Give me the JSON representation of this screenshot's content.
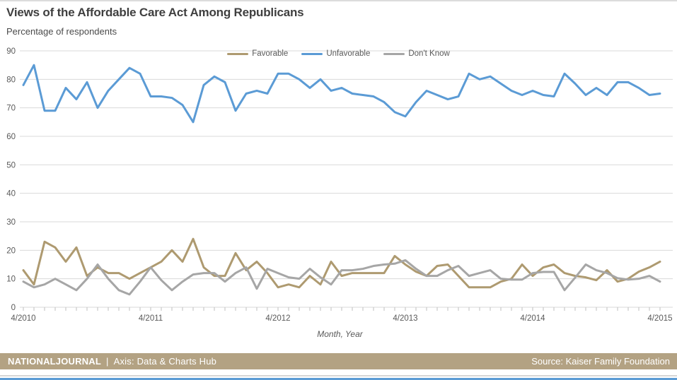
{
  "title": "Views of the Affordable Care Act Among Republicans",
  "subtitle": "Percentage of respondents",
  "footer": {
    "brand": "NATIONALJOURNAL",
    "divider": "|",
    "tagline": "Axis: Data & Charts Hub",
    "source": "Source: Kaiser Family Foundation",
    "bar_color": "#b3a283",
    "bottom_stripe_color": "#5b9bd5"
  },
  "chart_data": {
    "type": "line",
    "title": "Views of the Affordable Care Act Among Republicans",
    "subtitle": "Percentage of respondents",
    "xlabel": "Month, Year",
    "ylabel": "Percentage of respondents",
    "ylim": [
      0,
      90
    ],
    "y_ticks": [
      0,
      10,
      20,
      30,
      40,
      50,
      60,
      70,
      80,
      90
    ],
    "grid": true,
    "legend_position": "top-center",
    "x_start": "4/2010",
    "x_interval": "monthly",
    "x_tick_labels": [
      "4/2010",
      "4/2011",
      "4/2012",
      "4/2013",
      "4/2014",
      "4/2015"
    ],
    "x_tick_indices": [
      0,
      12,
      24,
      36,
      48,
      60
    ],
    "series": [
      {
        "name": "Favorable",
        "color": "#ae9a70",
        "values": [
          13,
          8,
          23,
          21,
          16,
          21,
          11,
          14,
          12,
          12,
          10,
          12,
          14,
          16,
          20,
          16,
          24,
          14,
          11,
          11,
          19,
          13,
          16,
          12,
          7,
          8,
          7,
          11,
          8,
          16,
          11,
          12,
          12,
          12,
          12,
          18,
          15,
          12.5,
          11,
          14.5,
          15,
          11,
          7,
          7,
          7,
          9,
          10,
          15,
          11,
          14,
          15,
          12,
          11,
          10.5,
          9.5,
          13,
          9,
          10,
          12.5,
          14,
          16
        ]
      },
      {
        "name": "Unfavorable",
        "color": "#5b9bd5",
        "values": [
          78,
          85,
          69,
          69,
          77,
          73,
          79,
          70,
          76,
          80,
          84,
          82,
          74,
          74,
          73.5,
          71,
          65,
          78,
          81,
          79,
          69,
          75,
          76,
          75,
          82,
          82,
          80,
          77,
          80,
          76,
          77,
          75,
          74.5,
          74,
          72,
          68.5,
          67,
          72,
          76,
          74.5,
          73,
          74,
          82,
          80,
          81,
          78.5,
          76,
          74.5,
          76,
          74.5,
          74,
          82,
          78.5,
          74.5,
          77,
          74.5,
          79,
          79,
          77,
          74.5,
          75
        ]
      },
      {
        "name": "Don't Know",
        "color": "#a6a6a6",
        "values": [
          9,
          7,
          8,
          10,
          8,
          6,
          10,
          15,
          10,
          6,
          4.5,
          9,
          14,
          9.5,
          6,
          9,
          11.5,
          12,
          12,
          9,
          12,
          14,
          6.5,
          13.5,
          12,
          10.5,
          10,
          13.5,
          10.5,
          8,
          13,
          13,
          13.5,
          14.5,
          15,
          15.3,
          16.5,
          13.5,
          11,
          11,
          13,
          14.5,
          11,
          12,
          13,
          10,
          9.7,
          9.7,
          12,
          12.4,
          12.4,
          6,
          10.4,
          15,
          13,
          12,
          10.2,
          9.7,
          10,
          11,
          9
        ]
      }
    ]
  }
}
